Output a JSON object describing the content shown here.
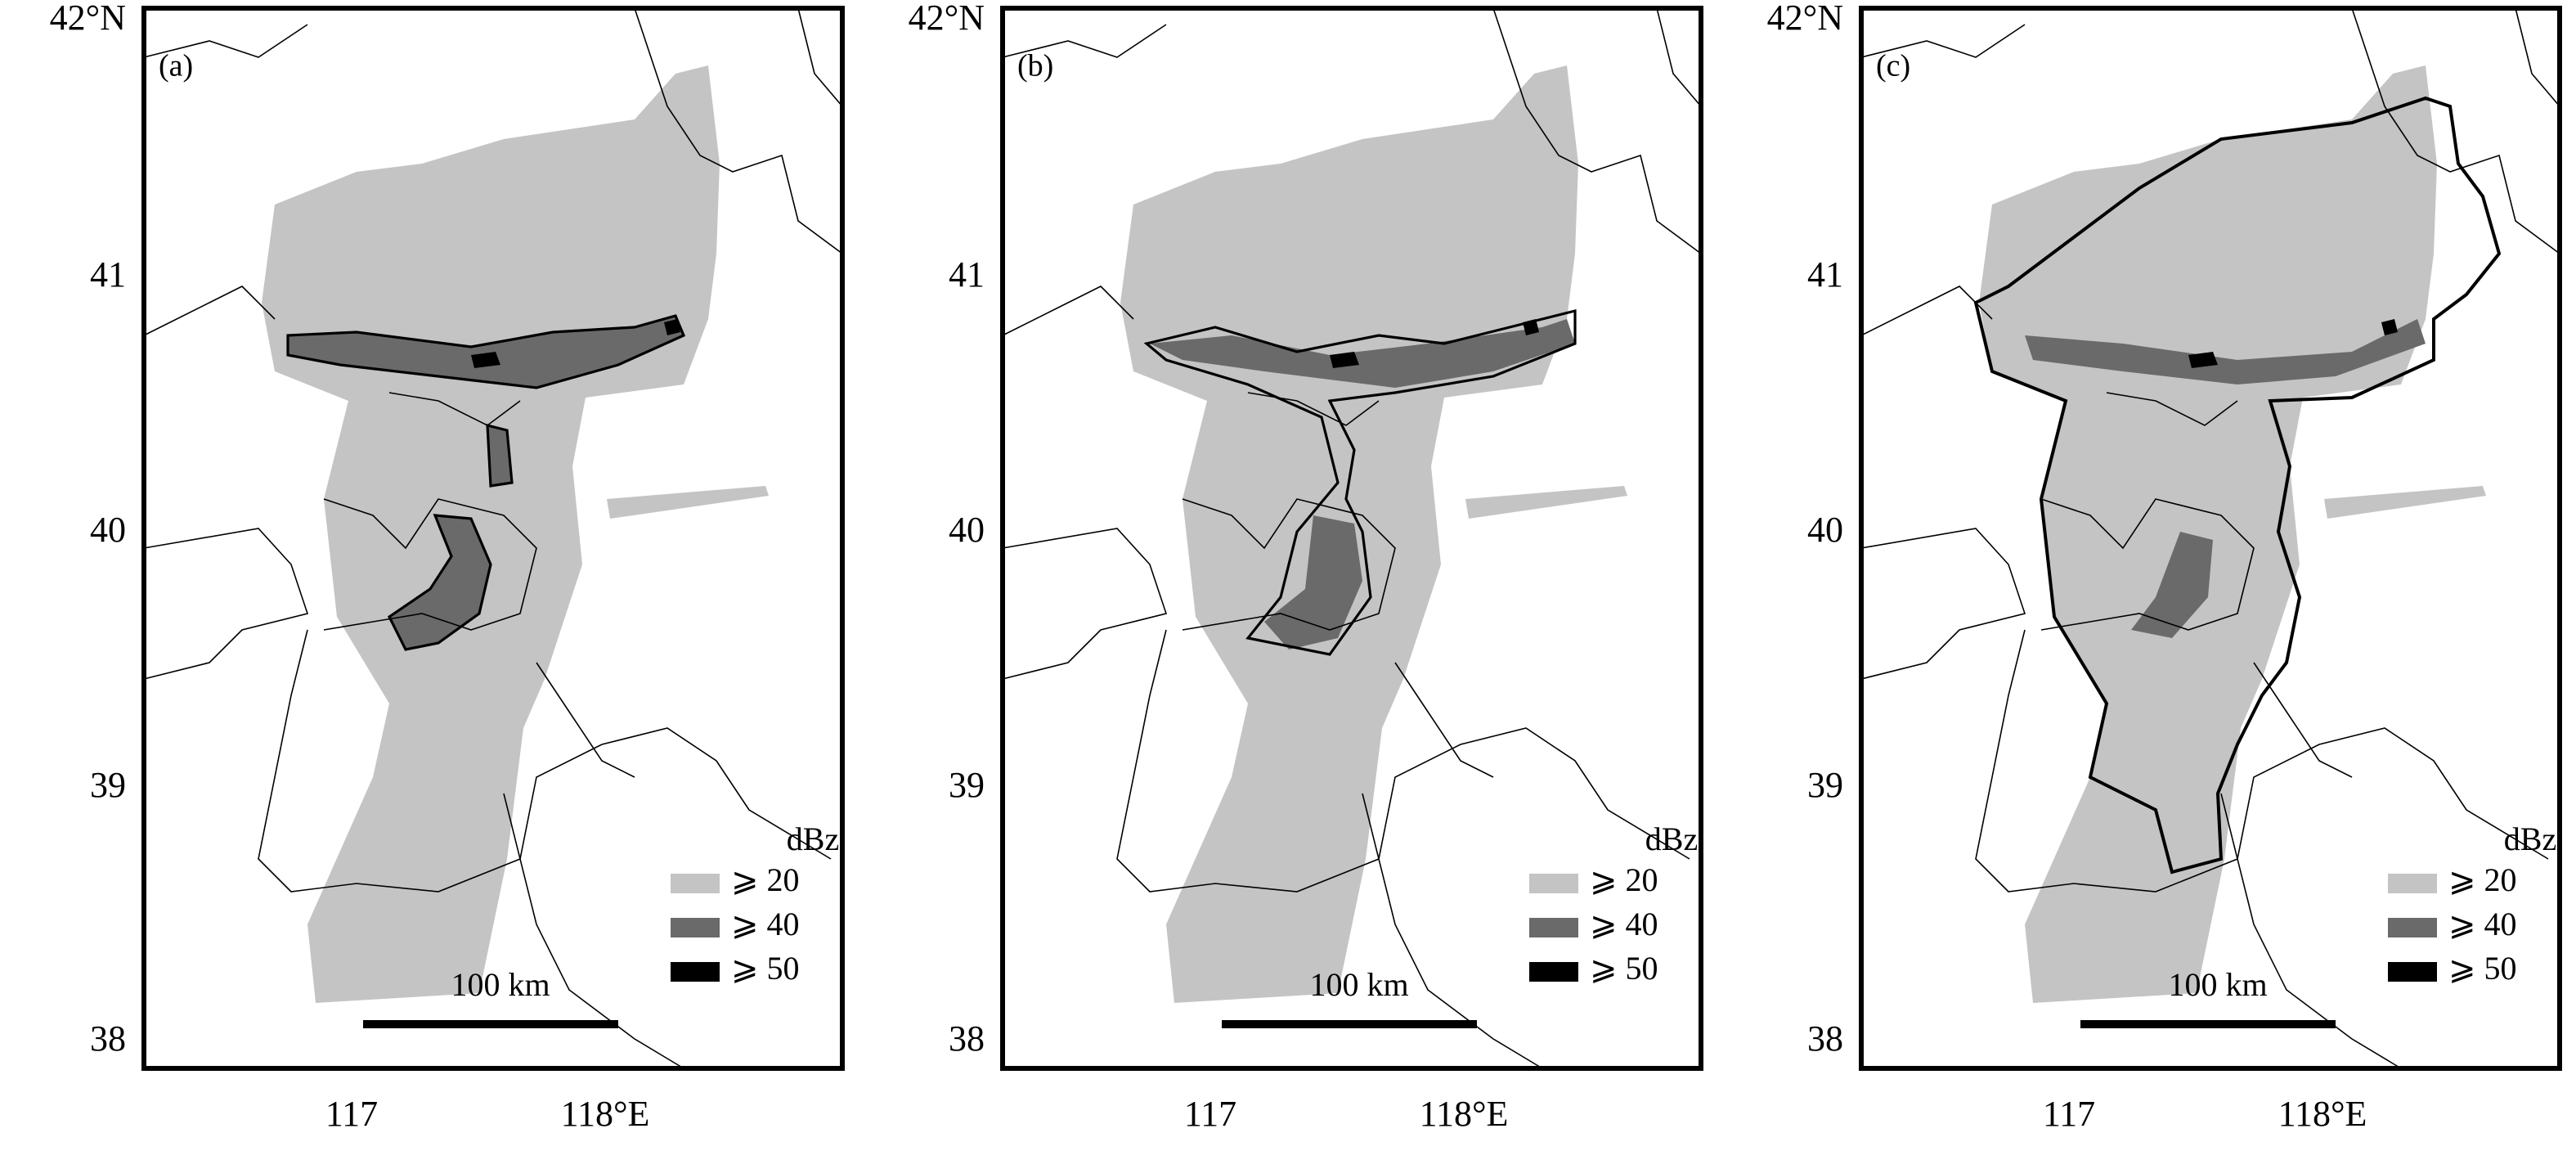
{
  "panels": [
    {
      "label": "(a)"
    },
    {
      "label": "(b)"
    },
    {
      "label": "(c)"
    }
  ],
  "lat_labels": [
    "42°N",
    "41",
    "40",
    "39",
    "38"
  ],
  "lon_labels": [
    "117",
    "118°E"
  ],
  "legend": {
    "title": "dBz",
    "items": [
      {
        "label": "⩾ 20",
        "color": "#c4c4c4"
      },
      {
        "label": "⩾ 40",
        "color": "#6a6a6a"
      },
      {
        "label": "⩾ 50",
        "color": "#000000"
      }
    ]
  },
  "scale_bar": {
    "label": "100 km"
  }
}
